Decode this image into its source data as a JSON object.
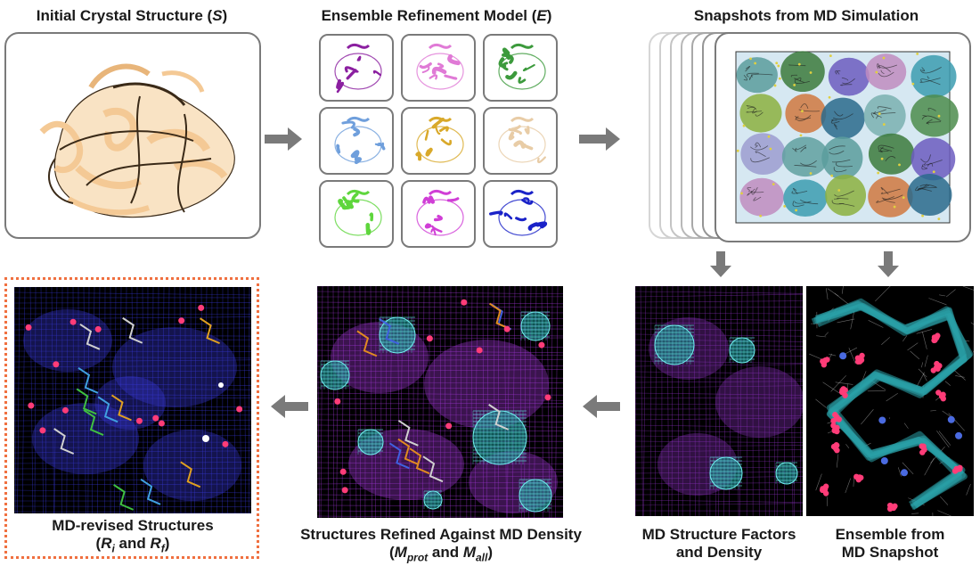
{
  "labels": {
    "initial": "Initial Crystal Structure (",
    "initial_sym": "S",
    "initial_end": ")",
    "ensemble": "Ensemble Refinement Model (",
    "ensemble_sym": "E",
    "ensemble_end": ")",
    "snapshots": "Snapshots from MD Simulation",
    "md_factors_1": "MD Structure Factors",
    "md_factors_2": "and Density",
    "ensemble_md_1": "Ensemble from",
    "ensemble_md_2": "MD Snapshot",
    "refined_1": "Structures Refined Against MD Density",
    "refined_open": "(",
    "refined_m1": "M",
    "refined_m1_sub": "prot",
    "refined_and": " and ",
    "refined_m2": "M",
    "refined_m2_sub": "all",
    "refined_close": ")",
    "revised_1": "MD-revised Structures",
    "revised_open": "(",
    "revised_r1": "R",
    "revised_r1_sub": "i",
    "revised_and": " and ",
    "revised_r2": "R",
    "revised_r2_sub": "f",
    "revised_close": ")"
  },
  "colors": {
    "protein": "#f4c995",
    "ensemble_tiles": [
      "#8b1fa0",
      "#e07ad6",
      "#3c9a3c",
      "#6f9fdc",
      "#d9a92a",
      "#e8cca6",
      "#5ed63c",
      "#d03ed6",
      "#1a22c8"
    ],
    "arrow": "#7a7a7a",
    "highlight_border": "#f07040",
    "mesh_blue": "#3a3ae0",
    "mesh_purple": "#a838e0",
    "mesh_cyan": "#40d0d0",
    "atom_pink": "#ff3c78"
  }
}
